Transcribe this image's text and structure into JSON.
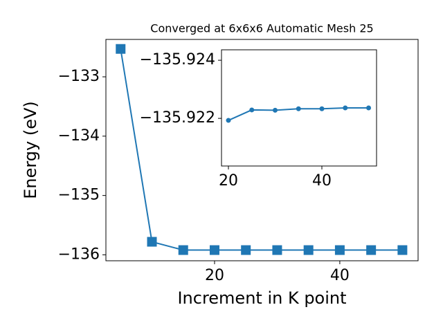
{
  "chart_data": [
    {
      "type": "line",
      "title": "Converged at 6x6x6 Automatic Mesh 25",
      "x_label": "Increment in K point",
      "y_label": "Energy (eV)",
      "x": [
        5,
        10,
        15,
        20,
        25,
        30,
        35,
        40,
        45,
        50
      ],
      "series": [
        {
          "color": "#1f77b4",
          "marker": "square",
          "values": [
            -132.53,
            -135.78,
            -135.92,
            -135.92,
            -135.92,
            -135.92,
            -135.92,
            -135.92,
            -135.92,
            -135.92
          ]
        }
      ],
      "xlim": [
        2.65,
        52.5
      ],
      "ylim": [
        -136.1,
        -132.37
      ],
      "xticks": [
        20,
        40
      ],
      "yticks": [
        {
          "value": -136,
          "label": "−136"
        },
        {
          "value": -135,
          "label": "−135"
        },
        {
          "value": -134,
          "label": "−134"
        },
        {
          "value": -133,
          "label": "−133"
        }
      ]
    },
    {
      "type": "line",
      "x": [
        20,
        25,
        30,
        35,
        40,
        45,
        50
      ],
      "series": [
        {
          "color": "#1f77b4",
          "marker": "circle",
          "values": [
            -135.92193,
            -135.92229,
            -135.92228,
            -135.92233,
            -135.92233,
            -135.92236,
            -135.92236
          ]
        }
      ],
      "xlim": [
        18.52,
        51.7
      ],
      "ylim": [
        -135.92036,
        -135.92436
      ],
      "xticks": [
        20,
        40
      ],
      "yticks": [
        {
          "value": -135.922,
          "label": "−135.922"
        },
        {
          "value": -135.924,
          "label": "−135.924"
        }
      ]
    }
  ]
}
